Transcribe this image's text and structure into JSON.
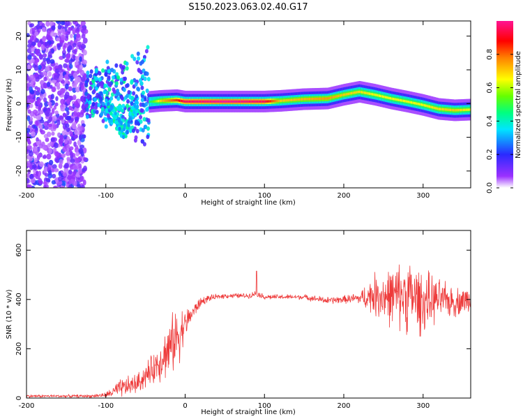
{
  "title": "S150.2023.063.02.40.G17",
  "colors": {
    "snr_line": "#ee3a3a",
    "axis": "#000000",
    "background": "#ffffff"
  },
  "chart_data": [
    {
      "type": "heatmap",
      "xlabel": "Height of straight line (km)",
      "ylabel": "Frequency (Hz)",
      "xlim": [
        -200,
        360
      ],
      "ylim": [
        -25,
        24.5
      ],
      "x_ticks": [
        -200,
        -100,
        0,
        100,
        200,
        300
      ],
      "y_ticks": [
        -20,
        -10,
        0,
        10,
        20
      ],
      "colorbar": {
        "label": "Normalized spectral amplitude",
        "range": [
          0,
          1
        ],
        "ticks": [
          0.0,
          0.2,
          0.4,
          0.6,
          0.8
        ],
        "colormap": "rainbow (white-purple-blue-cyan-green-yellow-red-magenta)"
      },
      "ridge_frequency": {
        "x": [
          -45,
          -30,
          -10,
          0,
          50,
          100,
          120,
          150,
          180,
          200,
          220,
          240,
          260,
          280,
          300,
          320,
          340,
          360
        ],
        "y": [
          0.5,
          0.8,
          1.0,
          0.6,
          0.6,
          0.6,
          0.8,
          1.3,
          1.5,
          2.6,
          3.5,
          2.6,
          1.5,
          0.6,
          -0.4,
          -1.6,
          -2.0,
          -1.8
        ],
        "amplitude": [
          0.45,
          0.7,
          0.85,
          0.95,
          1.0,
          0.95,
          0.7,
          0.72,
          0.75,
          0.7,
          0.68,
          0.65,
          0.65,
          0.65,
          0.65,
          0.68,
          0.7,
          0.65
        ]
      },
      "noise_region": {
        "x_range": [
          -200,
          -125
        ],
        "y_range": [
          -25,
          24.5
        ]
      }
    },
    {
      "type": "line",
      "xlabel": "Height of straight line (km)",
      "ylabel": "SNR (10 * v/v)",
      "xlim": [
        -200,
        360
      ],
      "ylim": [
        0,
        680
      ],
      "x_ticks": [
        -200,
        -100,
        0,
        100,
        200,
        300
      ],
      "y_ticks": [
        0,
        200,
        400,
        600
      ],
      "envelope": {
        "x": [
          -200,
          -120,
          -100,
          -80,
          -60,
          -50,
          -40,
          -30,
          -20,
          -10,
          0,
          10,
          20,
          30,
          50,
          80,
          90,
          100,
          150,
          180,
          200,
          220,
          240,
          260,
          280,
          300,
          320,
          340,
          360
        ],
        "mean": [
          8,
          8,
          12,
          40,
          60,
          90,
          120,
          160,
          200,
          250,
          300,
          350,
          390,
          405,
          415,
          415,
          425,
          410,
          410,
          395,
          400,
          405,
          420,
          410,
          420,
          390,
          400,
          390,
          400
        ],
        "spread": [
          6,
          6,
          10,
          40,
          40,
          50,
          60,
          90,
          110,
          130,
          60,
          30,
          20,
          12,
          10,
          10,
          12,
          10,
          10,
          15,
          15,
          25,
          90,
          120,
          150,
          130,
          80,
          60,
          50
        ]
      },
      "spike": {
        "x": 90,
        "y": 515
      }
    }
  ]
}
